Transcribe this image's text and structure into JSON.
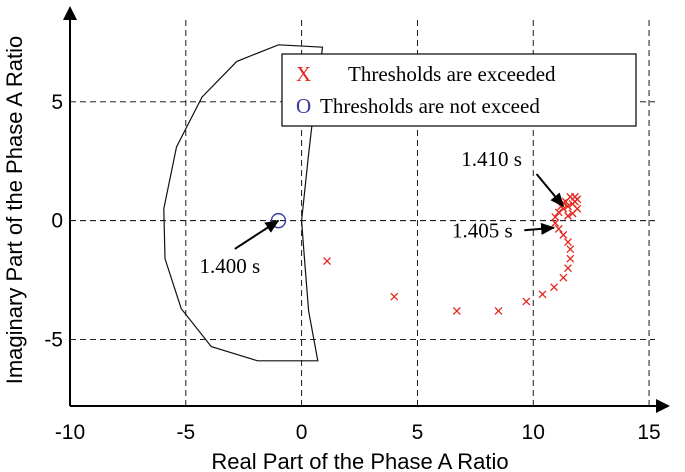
{
  "chart_data": {
    "type": "scatter",
    "xlabel": "Real Part of the Phase A Ratio",
    "ylabel": "Imaginary Part of the Phase A Ratio",
    "xlim": [
      -10,
      15.3
    ],
    "ylim": [
      -7.8,
      9.2
    ],
    "x_ticks": [
      -10,
      -5,
      0,
      5,
      10,
      15
    ],
    "x_tick_labels": [
      "-10",
      "-5",
      "0",
      "5",
      "10",
      "15"
    ],
    "y_ticks": [
      -5,
      0,
      5
    ],
    "y_tick_labels": [
      "-5",
      "0",
      "5"
    ],
    "grid": true,
    "legend_position": "top-center",
    "legend": [
      {
        "marker": "X",
        "label": "Thresholds are exceeded",
        "color": "#e3261c"
      },
      {
        "marker": "O",
        "label": "Thresholds are not exceed",
        "color": "#3a3aa0"
      }
    ],
    "colors": {
      "exceeded": "#e3261c",
      "not_exceeded": "#3a3aa0",
      "curve": "#000000"
    },
    "annotations": [
      {
        "text": "1.400 s",
        "target": [
          -1.0,
          0.0
        ],
        "text_anchor": [
          -3.1,
          -2.2
        ]
      },
      {
        "text": "1.405 s",
        "target": [
          10.9,
          -0.3
        ],
        "text_anchor": [
          7.8,
          -0.7
        ]
      },
      {
        "text": "1.410 s",
        "target": [
          11.3,
          0.6
        ],
        "text_anchor": [
          8.2,
          2.3
        ]
      }
    ],
    "boundary_curve": [
      [
        0.0,
        0.0
      ],
      [
        0.3,
        2.8
      ],
      [
        0.6,
        5.3
      ],
      [
        0.8,
        6.5
      ],
      [
        0.9,
        7.3
      ],
      [
        -1.0,
        7.4
      ],
      [
        -2.8,
        6.7
      ],
      [
        -4.3,
        5.2
      ],
      [
        -5.4,
        3.1
      ],
      [
        -5.95,
        0.5
      ],
      [
        -5.9,
        -1.6
      ],
      [
        -5.2,
        -3.7
      ],
      [
        -3.9,
        -5.3
      ],
      [
        -1.9,
        -5.9
      ],
      [
        0.7,
        -5.9
      ],
      [
        0.3,
        -3.8
      ],
      [
        0.1,
        -1.3
      ],
      [
        0.0,
        0.0
      ]
    ],
    "series": [
      {
        "name": "Thresholds are not exceed",
        "marker": "O",
        "points": [
          [
            -1.0,
            0.0
          ]
        ]
      },
      {
        "name": "Thresholds are exceeded",
        "marker": "X",
        "points": [
          [
            1.1,
            -1.7
          ],
          [
            4.0,
            -3.2
          ],
          [
            6.7,
            -3.8
          ],
          [
            8.5,
            -3.8
          ],
          [
            9.7,
            -3.4
          ],
          [
            10.4,
            -3.1
          ],
          [
            10.9,
            -2.8
          ],
          [
            11.3,
            -2.4
          ],
          [
            11.5,
            -2.0
          ],
          [
            11.6,
            -1.6
          ],
          [
            11.6,
            -1.2
          ],
          [
            11.5,
            -0.9
          ],
          [
            11.3,
            -0.6
          ],
          [
            11.1,
            -0.35
          ],
          [
            10.95,
            -0.1
          ],
          [
            10.95,
            0.15
          ],
          [
            11.1,
            0.35
          ],
          [
            11.3,
            0.5
          ],
          [
            11.5,
            0.6
          ],
          [
            11.7,
            0.7
          ],
          [
            11.8,
            0.8
          ],
          [
            11.9,
            0.9
          ],
          [
            11.6,
            1.0
          ],
          [
            11.4,
            0.8
          ],
          [
            11.2,
            0.6
          ],
          [
            11.7,
            0.3
          ],
          [
            11.9,
            0.5
          ],
          [
            11.5,
            0.2
          ],
          [
            11.3,
            0.75
          ],
          [
            11.8,
            1.0
          ]
        ]
      }
    ]
  }
}
